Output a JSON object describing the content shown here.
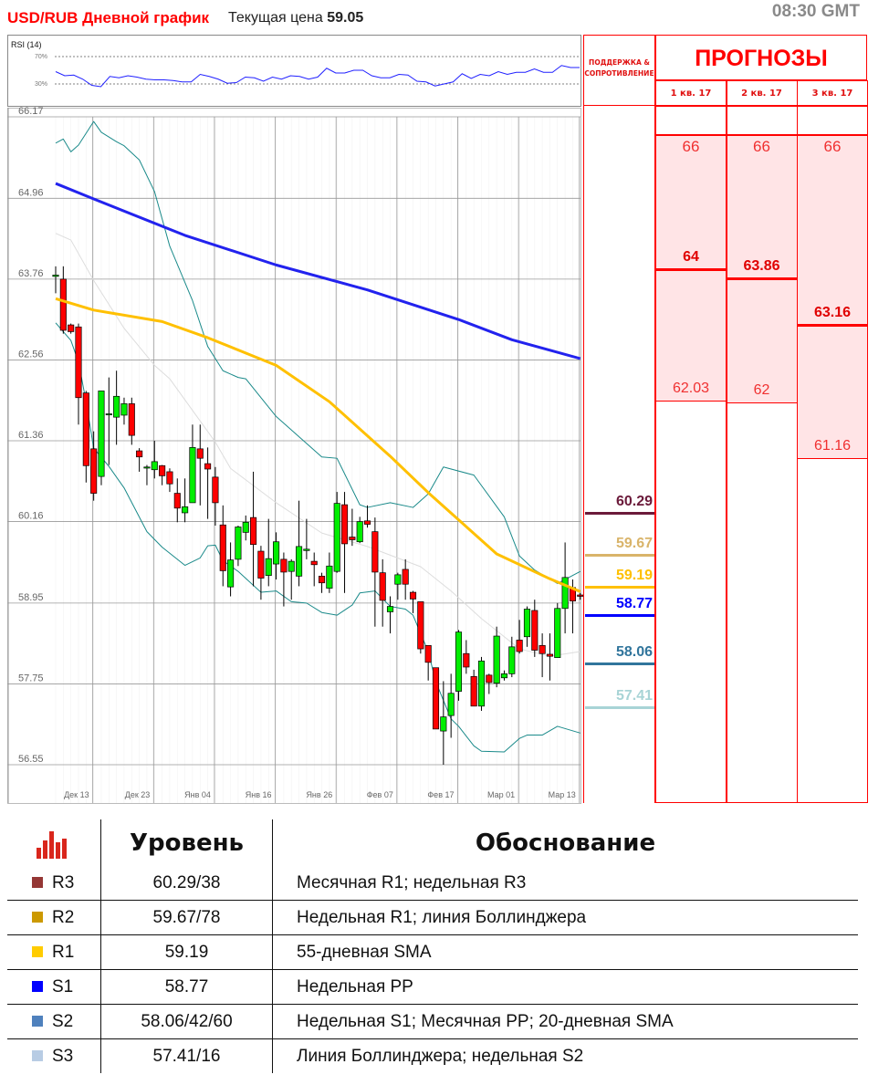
{
  "header": {
    "title": "USD/RUB Дневной график",
    "price_label": "Текущая цена",
    "price_value": "59.05",
    "time": "08:30 GMT"
  },
  "rsi": {
    "label": "RSI (14)",
    "levels": [
      "70%",
      "30%"
    ],
    "line_color": "#2020ff",
    "values": [
      48,
      42,
      43,
      37,
      28,
      26,
      41,
      39,
      42,
      40,
      37,
      36,
      36,
      35,
      33,
      33,
      44,
      41,
      37,
      31,
      32,
      40,
      39,
      34,
      40,
      37,
      42,
      41,
      37,
      40,
      53,
      46,
      46,
      50,
      50,
      42,
      39,
      39,
      44,
      43,
      34,
      33,
      27,
      30,
      33,
      45,
      38,
      44,
      42,
      48,
      44,
      47,
      47,
      52,
      47,
      47,
      57,
      54,
      54
    ]
  },
  "chart_data": {
    "type": "candlestick",
    "ylim": [
      56.55,
      66.17
    ],
    "yticks": [
      "66.17",
      "64.96",
      "63.76",
      "62.56",
      "61.36",
      "60.16",
      "58.95",
      "57.75",
      "56.55"
    ],
    "xticks": [
      {
        "index": 5,
        "label": "Дек 13"
      },
      {
        "index": 13,
        "label": "Дек 23"
      },
      {
        "index": 21,
        "label": "Янв 04"
      },
      {
        "index": 29,
        "label": "Янв 16"
      },
      {
        "index": 37,
        "label": "Янв 26"
      },
      {
        "index": 45,
        "label": "Фев 07"
      },
      {
        "index": 53,
        "label": "Фев 17"
      },
      {
        "index": 61,
        "label": "Мар 01"
      },
      {
        "index": 69,
        "label": "Мар 13"
      }
    ],
    "grid": true,
    "colors": {
      "up": "#00ee00",
      "down": "#ff0000",
      "sma100": "#2222ee",
      "sma55": "#ffc000",
      "bollinger": "#1a8a8a",
      "bollinger_mid": "#dddddd"
    },
    "candles": [
      [
        63.8,
        63.95,
        63.55,
        63.82
      ],
      [
        63.76,
        63.95,
        62.95,
        63.0
      ],
      [
        63.08,
        63.1,
        62.95,
        62.98
      ],
      [
        63.05,
        63.1,
        61.6,
        62.0
      ],
      [
        62.07,
        62.1,
        60.74,
        60.99
      ],
      [
        61.24,
        61.5,
        60.47,
        60.58
      ],
      [
        60.83,
        62.1,
        60.7,
        62.1
      ],
      [
        61.75,
        62.3,
        61.0,
        61.76
      ],
      [
        61.71,
        62.4,
        61.3,
        62.02
      ],
      [
        61.74,
        62.0,
        61.6,
        61.91
      ],
      [
        61.91,
        62.0,
        61.3,
        61.44
      ],
      [
        61.21,
        61.25,
        60.9,
        61.12
      ],
      [
        60.96,
        61.0,
        60.7,
        60.97
      ],
      [
        60.93,
        61.36,
        60.8,
        61.05
      ],
      [
        60.99,
        61.0,
        60.7,
        60.84
      ],
      [
        60.9,
        60.95,
        60.6,
        60.72
      ],
      [
        60.58,
        60.8,
        60.15,
        60.36
      ],
      [
        60.29,
        60.8,
        60.15,
        60.38
      ],
      [
        60.44,
        61.6,
        60.44,
        61.26
      ],
      [
        61.24,
        61.6,
        60.4,
        61.1
      ],
      [
        61.02,
        61.26,
        60.2,
        60.94
      ],
      [
        60.82,
        60.97,
        60.1,
        60.44
      ],
      [
        60.11,
        60.4,
        59.2,
        59.43
      ],
      [
        59.19,
        59.85,
        59.05,
        59.59
      ],
      [
        59.6,
        60.1,
        59.5,
        60.08
      ],
      [
        60.0,
        60.25,
        59.88,
        60.15
      ],
      [
        60.22,
        60.9,
        59.2,
        59.82
      ],
      [
        59.72,
        59.8,
        59.0,
        59.32
      ],
      [
        59.36,
        60.2,
        59.2,
        59.61
      ],
      [
        59.53,
        60.0,
        59.3,
        59.86
      ],
      [
        59.6,
        59.7,
        58.9,
        59.41
      ],
      [
        59.42,
        59.6,
        59.0,
        59.57
      ],
      [
        59.35,
        60.47,
        59.2,
        59.79
      ],
      [
        59.73,
        60.2,
        59.6,
        59.75
      ],
      [
        59.57,
        59.7,
        59.2,
        59.52
      ],
      [
        59.35,
        59.4,
        59.1,
        59.25
      ],
      [
        59.17,
        59.7,
        59.1,
        59.5
      ],
      [
        59.42,
        60.6,
        59.4,
        60.43
      ],
      [
        60.41,
        60.6,
        59.1,
        59.83
      ],
      [
        59.93,
        60.35,
        59.8,
        59.89
      ],
      [
        59.86,
        60.23,
        59.84,
        60.16
      ],
      [
        60.17,
        60.4,
        60.07,
        60.12
      ],
      [
        60.01,
        60.22,
        58.6,
        59.41
      ],
      [
        59.4,
        59.6,
        58.6,
        58.99
      ],
      [
        58.82,
        59.05,
        58.5,
        58.9
      ],
      [
        59.23,
        59.4,
        59.0,
        59.37
      ],
      [
        59.45,
        59.6,
        59.0,
        59.23
      ],
      [
        59.11,
        59.13,
        58.8,
        59.01
      ],
      [
        58.97,
        58.97,
        58.2,
        58.27
      ],
      [
        58.32,
        58.32,
        57.8,
        58.07
      ],
      [
        57.99,
        57.99,
        57.08,
        57.08
      ],
      [
        57.05,
        57.79,
        56.55,
        57.26
      ],
      [
        57.28,
        57.9,
        56.95,
        57.61
      ],
      [
        57.64,
        58.55,
        57.5,
        58.52
      ],
      [
        58.2,
        58.4,
        57.9,
        58.0
      ],
      [
        57.86,
        57.96,
        57.42,
        57.42
      ],
      [
        57.42,
        58.15,
        57.35,
        58.09
      ],
      [
        57.88,
        57.9,
        57.6,
        57.77
      ],
      [
        57.76,
        58.6,
        57.7,
        58.46
      ],
      [
        57.84,
        57.95,
        57.8,
        57.9
      ],
      [
        57.9,
        58.45,
        57.85,
        58.3
      ],
      [
        58.4,
        58.7,
        58.2,
        58.23
      ],
      [
        58.45,
        58.9,
        58.3,
        58.86
      ],
      [
        58.84,
        59.0,
        58.15,
        58.25
      ],
      [
        58.32,
        58.5,
        57.85,
        58.2
      ],
      [
        58.19,
        58.5,
        57.8,
        58.16
      ],
      [
        58.14,
        58.95,
        58.14,
        58.87
      ],
      [
        58.87,
        59.85,
        58.5,
        59.33
      ],
      [
        59.18,
        59.3,
        58.5,
        58.98
      ],
      [
        59.07,
        59.1,
        59.0,
        59.05
      ]
    ],
    "candle_fields": [
      "open",
      "high",
      "low",
      "close"
    ],
    "lines": {
      "sma100": [
        [
          0,
          65.18
        ],
        [
          5,
          64.95
        ],
        [
          17,
          64.41
        ],
        [
          29,
          63.97
        ],
        [
          41,
          63.6
        ],
        [
          53,
          63.16
        ],
        [
          60,
          62.86
        ],
        [
          69,
          62.58
        ]
      ],
      "sma55": [
        [
          0,
          63.47
        ],
        [
          5,
          63.3
        ],
        [
          14,
          63.13
        ],
        [
          20,
          62.89
        ],
        [
          29,
          62.48
        ],
        [
          36,
          61.94
        ],
        [
          44,
          61.13
        ],
        [
          49,
          60.59
        ],
        [
          58,
          59.68
        ],
        [
          65,
          59.31
        ],
        [
          69,
          59.12
        ]
      ],
      "bb_upper": [
        [
          0,
          65.78
        ],
        [
          1,
          65.84
        ],
        [
          2,
          65.65
        ],
        [
          3,
          65.75
        ],
        [
          5,
          66.1
        ],
        [
          6,
          65.94
        ],
        [
          8,
          65.8
        ],
        [
          9,
          65.74
        ],
        [
          11,
          65.53
        ],
        [
          13,
          65.06
        ],
        [
          15,
          64.25
        ],
        [
          18,
          63.44
        ],
        [
          20,
          62.76
        ],
        [
          22,
          62.4
        ],
        [
          24,
          62.3
        ],
        [
          25,
          62.28
        ],
        [
          29,
          61.72
        ],
        [
          35,
          61.12
        ],
        [
          37,
          61.1
        ],
        [
          40,
          60.41
        ],
        [
          41,
          60.37
        ],
        [
          44,
          60.44
        ],
        [
          47,
          60.37
        ],
        [
          49,
          60.57
        ],
        [
          51,
          60.97
        ],
        [
          55,
          60.85
        ],
        [
          59,
          60.23
        ],
        [
          61,
          59.65
        ],
        [
          63,
          59.44
        ],
        [
          66,
          59.24
        ],
        [
          69,
          59.42
        ]
      ],
      "bb_mid": [
        [
          0,
          64.44
        ],
        [
          2,
          64.34
        ],
        [
          5,
          63.74
        ],
        [
          9,
          63.03
        ],
        [
          13,
          62.48
        ],
        [
          15,
          62.28
        ],
        [
          21,
          61.34
        ],
        [
          23,
          60.95
        ],
        [
          29,
          60.44
        ],
        [
          35,
          59.99
        ],
        [
          41,
          59.79
        ],
        [
          48,
          59.49
        ],
        [
          52,
          59.13
        ],
        [
          56,
          58.72
        ],
        [
          59,
          58.45
        ],
        [
          61,
          58.27
        ],
        [
          65,
          58.16
        ],
        [
          69,
          58.23
        ]
      ],
      "bb_lower": [
        [
          0,
          63.11
        ],
        [
          2,
          62.85
        ],
        [
          3,
          62.53
        ],
        [
          4,
          61.94
        ],
        [
          5,
          61.25
        ],
        [
          7,
          60.98
        ],
        [
          9,
          60.66
        ],
        [
          12,
          60.01
        ],
        [
          14,
          59.78
        ],
        [
          17,
          59.51
        ],
        [
          19,
          59.62
        ],
        [
          20,
          59.8
        ],
        [
          21,
          59.81
        ],
        [
          22,
          59.58
        ],
        [
          24,
          59.42
        ],
        [
          27,
          59.11
        ],
        [
          29,
          59.13
        ],
        [
          31,
          58.97
        ],
        [
          33,
          58.95
        ],
        [
          35,
          58.81
        ],
        [
          37,
          58.77
        ],
        [
          39,
          58.92
        ],
        [
          40,
          59.1
        ],
        [
          42,
          59.13
        ],
        [
          44,
          58.9
        ],
        [
          46,
          58.86
        ],
        [
          47,
          58.77
        ],
        [
          49,
          58.23
        ],
        [
          50,
          57.78
        ],
        [
          52,
          57.23
        ],
        [
          53,
          57.12
        ],
        [
          55,
          56.83
        ],
        [
          56,
          56.75
        ],
        [
          59,
          56.74
        ],
        [
          61,
          56.94
        ],
        [
          62,
          56.99
        ],
        [
          64,
          56.99
        ],
        [
          66,
          57.12
        ],
        [
          69,
          57.02
        ]
      ]
    }
  },
  "sr_column": {
    "header": "ПОДДЕРЖКА & СОПРОТИВЛЕНИЕ",
    "levels": [
      {
        "value": "60.29",
        "color": "#6b1a3a"
      },
      {
        "value": "59.67",
        "color": "#d9b46a"
      },
      {
        "value": "59.19",
        "color": "#ffc000"
      },
      {
        "value": "58.77",
        "color": "#0000ff"
      },
      {
        "value": "58.06",
        "color": "#31759c"
      },
      {
        "value": "57.41",
        "color": "#a8d4d6"
      }
    ]
  },
  "forecasts": {
    "title": "ПРОГНОЗЫ",
    "quarters": [
      {
        "label": "1 кв. 17",
        "high": "66",
        "mid": "64",
        "low": "62.03"
      },
      {
        "label": "2 кв. 17",
        "high": "66",
        "mid": "63.86",
        "low": "62"
      },
      {
        "label": "3 кв. 17",
        "high": "66",
        "mid": "63.16",
        "low": "61.16"
      }
    ]
  },
  "levels_table": {
    "headers": {
      "level": "Уровень",
      "reason": "Обоснование"
    },
    "icon": "bar-chart-icon",
    "rows": [
      {
        "name": "R3",
        "value": "60.29/38",
        "reason": "Месячная R1; недельная R3",
        "color": "#953735"
      },
      {
        "name": "R2",
        "value": "59.67/78",
        "reason": "Недельная R1; линия Боллинджера",
        "color": "#cc9900"
      },
      {
        "name": "R1",
        "value": "59.19",
        "reason": "55-дневная SMA",
        "color": "#ffcc00"
      },
      {
        "name": "S1",
        "value": "58.77",
        "reason": "Недельная PP",
        "color": "#0000ff"
      },
      {
        "name": "S2",
        "value": "58.06/42/60",
        "reason": "Недельная S1; Месячная PP; 20-дневная SMA",
        "color": "#4f81bd"
      },
      {
        "name": "S3",
        "value": "57.41/16",
        "reason": "Линия Боллинджера; недельная S2",
        "color": "#b8cce4"
      }
    ]
  }
}
